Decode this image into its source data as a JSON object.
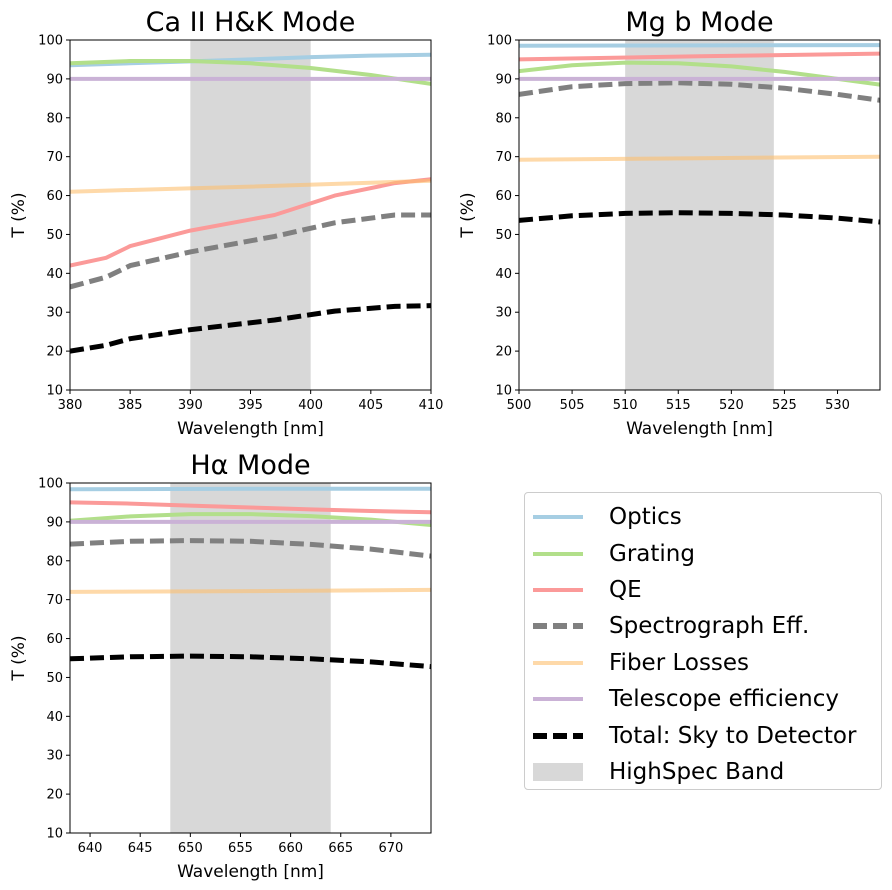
{
  "series_styles": [
    {
      "key": "optics",
      "color": "#a6cee3",
      "width": 4,
      "dash": "",
      "opacity": 1
    },
    {
      "key": "grating",
      "color": "#b2df8a",
      "width": 4,
      "dash": "",
      "opacity": 1
    },
    {
      "key": "qe",
      "color": "#fb9a99",
      "width": 4,
      "dash": "",
      "opacity": 1
    },
    {
      "key": "spec",
      "color": "#808080",
      "width": 5,
      "dash": "14 6",
      "opacity": 1
    },
    {
      "key": "fiber",
      "color": "#fdbf6f",
      "width": 4,
      "dash": "",
      "opacity": 0.6
    },
    {
      "key": "telescope",
      "color": "#cab2d6",
      "width": 4,
      "dash": "",
      "opacity": 1
    },
    {
      "key": "total",
      "color": "#000000",
      "width": 5,
      "dash": "14 6",
      "opacity": 1
    }
  ],
  "band_color": "#d8d8d8",
  "legend": {
    "items": [
      {
        "label": "Optics",
        "color": "#a6cee3",
        "style": "line"
      },
      {
        "label": "Grating",
        "color": "#b2df8a",
        "style": "line"
      },
      {
        "label": "QE",
        "color": "#fb9a99",
        "style": "line"
      },
      {
        "label": "Spectrograph Eff.",
        "color": "#808080",
        "style": "dash"
      },
      {
        "label": "Fiber Losses",
        "color": "#fdbf6f",
        "style": "line"
      },
      {
        "label": "Telescope efficiency",
        "color": "#cab2d6",
        "style": "line"
      },
      {
        "label": "Total: Sky to Detector",
        "color": "#000000",
        "style": "dash"
      },
      {
        "label": "HighSpec Band",
        "color": "#d8d8d8",
        "style": "patch"
      }
    ]
  },
  "chart_data": [
    {
      "type": "line",
      "title": "Ca II H&K Mode",
      "xlabel": "Wavelength [nm]",
      "ylabel": "T (%)",
      "xlim": [
        380,
        410
      ],
      "ylim": [
        10,
        100
      ],
      "xticks": [
        380,
        385,
        390,
        395,
        400,
        405,
        410
      ],
      "yticks": [
        10,
        20,
        30,
        40,
        50,
        60,
        70,
        80,
        90,
        100
      ],
      "band": [
        390,
        400
      ],
      "series": [
        {
          "name": "Optics",
          "x": [
            380,
            385,
            390,
            395,
            400,
            405,
            410
          ],
          "y": [
            93.5,
            94.0,
            94.5,
            95.0,
            95.6,
            96.0,
            96.2
          ]
        },
        {
          "name": "Grating",
          "x": [
            380,
            385,
            390,
            395,
            400,
            405,
            410
          ],
          "y": [
            94.0,
            94.6,
            94.6,
            94.0,
            92.8,
            91.0,
            88.7
          ]
        },
        {
          "name": "QE",
          "x": [
            380,
            383,
            385,
            390,
            397,
            402,
            407,
            410
          ],
          "y": [
            42.0,
            44.0,
            47.0,
            51.0,
            55.0,
            60.0,
            63.2,
            64.2
          ]
        },
        {
          "name": "Spectrograph Eff.",
          "x": [
            380,
            383,
            385,
            390,
            397,
            402,
            407,
            410
          ],
          "y": [
            36.5,
            39.0,
            42.0,
            45.5,
            49.5,
            53.0,
            55.0,
            55.0
          ]
        },
        {
          "name": "Fiber Losses",
          "x": [
            380,
            395,
            410
          ],
          "y": [
            61.0,
            62.3,
            63.8
          ]
        },
        {
          "name": "Telescope efficiency",
          "x": [
            380,
            410
          ],
          "y": [
            90.0,
            90.0
          ]
        },
        {
          "name": "Total: Sky to Detector",
          "x": [
            380,
            383,
            385,
            390,
            397,
            402,
            407,
            410
          ],
          "y": [
            20.0,
            21.5,
            23.2,
            25.5,
            28.0,
            30.3,
            31.5,
            31.7
          ]
        }
      ]
    },
    {
      "type": "line",
      "title": "Mg b Mode",
      "xlabel": "Wavelength [nm]",
      "ylabel": "T (%)",
      "xlim": [
        500,
        534
      ],
      "ylim": [
        10,
        100
      ],
      "xticks": [
        500,
        505,
        510,
        515,
        520,
        525,
        530
      ],
      "yticks": [
        10,
        20,
        30,
        40,
        50,
        60,
        70,
        80,
        90,
        100
      ],
      "band": [
        510,
        524
      ],
      "series": [
        {
          "name": "Optics",
          "x": [
            500,
            517,
            534
          ],
          "y": [
            98.5,
            98.6,
            98.7
          ]
        },
        {
          "name": "Grating",
          "x": [
            500,
            505,
            510,
            515,
            520,
            525,
            530,
            534
          ],
          "y": [
            92.0,
            93.5,
            94.2,
            94.0,
            93.2,
            91.8,
            90.0,
            88.5
          ]
        },
        {
          "name": "QE",
          "x": [
            500,
            517,
            534
          ],
          "y": [
            95.0,
            95.8,
            96.5
          ]
        },
        {
          "name": "Spectrograph Eff.",
          "x": [
            500,
            505,
            510,
            515,
            520,
            525,
            530,
            534
          ],
          "y": [
            86.0,
            88.0,
            88.8,
            89.0,
            88.6,
            87.6,
            86.0,
            84.5
          ]
        },
        {
          "name": "Fiber Losses",
          "x": [
            500,
            517,
            534
          ],
          "y": [
            69.2,
            69.6,
            70.0
          ]
        },
        {
          "name": "Telescope efficiency",
          "x": [
            500,
            534
          ],
          "y": [
            90.0,
            90.0
          ]
        },
        {
          "name": "Total: Sky to Detector",
          "x": [
            500,
            505,
            510,
            515,
            520,
            525,
            530,
            534
          ],
          "y": [
            53.6,
            54.8,
            55.4,
            55.6,
            55.4,
            55.0,
            54.2,
            53.2
          ]
        }
      ]
    },
    {
      "type": "line",
      "title": "Hα Mode",
      "xlabel": "Wavelength [nm]",
      "ylabel": "T (%)",
      "xlim": [
        638,
        674
      ],
      "ylim": [
        10,
        100
      ],
      "xticks": [
        640,
        645,
        650,
        655,
        660,
        665,
        670
      ],
      "yticks": [
        10,
        20,
        30,
        40,
        50,
        60,
        70,
        80,
        90,
        100
      ],
      "band": [
        648,
        664
      ],
      "series": [
        {
          "name": "Optics",
          "x": [
            638,
            656,
            674
          ],
          "y": [
            98.4,
            98.5,
            98.5
          ]
        },
        {
          "name": "Grating",
          "x": [
            638,
            644,
            650,
            656,
            662,
            668,
            674
          ],
          "y": [
            90.3,
            91.4,
            92.0,
            92.0,
            91.5,
            90.6,
            89.2
          ]
        },
        {
          "name": "QE",
          "x": [
            638,
            644,
            650,
            656,
            662,
            668,
            674
          ],
          "y": [
            95.0,
            94.7,
            94.2,
            93.7,
            93.2,
            92.8,
            92.5
          ]
        },
        {
          "name": "Spectrograph Eff.",
          "x": [
            638,
            644,
            650,
            656,
            662,
            668,
            674
          ],
          "y": [
            84.3,
            85.0,
            85.2,
            85.0,
            84.2,
            83.0,
            81.2
          ]
        },
        {
          "name": "Fiber Losses",
          "x": [
            638,
            656,
            674
          ],
          "y": [
            72.0,
            72.2,
            72.5
          ]
        },
        {
          "name": "Telescope efficiency",
          "x": [
            638,
            674
          ],
          "y": [
            90.0,
            90.0
          ]
        },
        {
          "name": "Total: Sky to Detector",
          "x": [
            638,
            644,
            650,
            656,
            662,
            668,
            674
          ],
          "y": [
            54.8,
            55.3,
            55.5,
            55.3,
            54.8,
            54.0,
            52.8
          ]
        }
      ]
    }
  ]
}
